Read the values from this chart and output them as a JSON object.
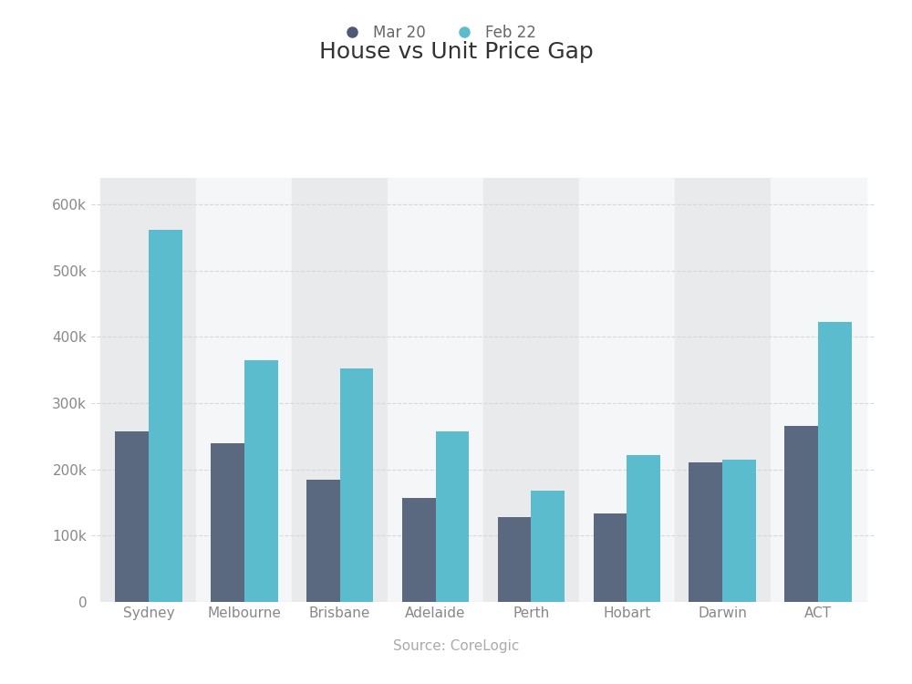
{
  "title": "House vs Unit Price Gap",
  "categories": [
    "Sydney",
    "Melbourne",
    "Brisbane",
    "Adelaide",
    "Perth",
    "Hobart",
    "Darwin",
    "ACT"
  ],
  "mar20_values": [
    258000,
    240000,
    185000,
    157000,
    128000,
    133000,
    210000,
    265000
  ],
  "feb22_values": [
    562000,
    365000,
    353000,
    258000,
    168000,
    222000,
    215000,
    422000
  ],
  "mar20_color": "#5a6880",
  "feb22_color": "#5bbcce",
  "legend_labels": [
    "Mar 20",
    "Feb 22"
  ],
  "legend_marker_mar20": "#4d5975",
  "legend_marker_feb22": "#5bbcce",
  "source_text": "Source: CoreLogic",
  "ylim": [
    0,
    640000
  ],
  "yticks": [
    0,
    100000,
    200000,
    300000,
    400000,
    500000,
    600000
  ],
  "ytick_labels": [
    "0",
    "100k",
    "200k",
    "300k",
    "400k",
    "500k",
    "600k"
  ],
  "background_color": "#ffffff",
  "plot_bg_color": "#eeeff0",
  "shaded_col_color": "#e8eaeb",
  "white_col_color": "#f5f6f7",
  "shaded_cols": [
    0,
    2,
    4,
    6
  ],
  "grid_color": "#d8d8d8",
  "title_fontsize": 18,
  "tick_fontsize": 11,
  "legend_fontsize": 12,
  "source_fontsize": 11,
  "bar_width": 0.35,
  "figsize": [
    10.0,
    7.5
  ],
  "dpi": 100
}
